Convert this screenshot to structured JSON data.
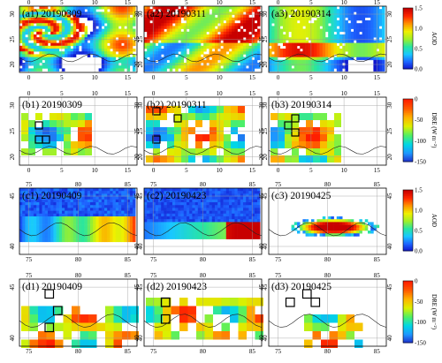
{
  "rows": [
    {
      "id": "a",
      "kind": "aod",
      "region": "sahara",
      "grid": "fine",
      "panels": [
        "(a1) 20190309",
        "(a2) 20190311",
        "(a3) 20190314"
      ],
      "xticks": [
        "0",
        "5",
        "10",
        "15"
      ],
      "yticks": [
        "30",
        "25",
        "20"
      ],
      "colorbar": {
        "title": "AOD",
        "ticks": [
          "1.5",
          "1.0",
          "0.5",
          "0.0"
        ]
      }
    },
    {
      "id": "b",
      "kind": "dre",
      "region": "sahara",
      "grid": "coarse",
      "panels": [
        "(b1) 20190309",
        "(b2) 20190311",
        "(b3) 20190314"
      ],
      "xticks": [
        "0",
        "5",
        "10",
        "15"
      ],
      "yticks": [
        "30",
        "25",
        "20"
      ],
      "colorbar": {
        "title": "DRE (W m⁻²)",
        "ticks": [
          "0",
          "-50",
          "-100",
          "-150"
        ]
      }
    },
    {
      "id": "c",
      "kind": "aod",
      "region": "taklimakan",
      "grid": "fine",
      "panels": [
        "(c1) 20190409",
        "(c2) 20190423",
        "(c3) 20190425"
      ],
      "xticks": [
        "75",
        "80",
        "85"
      ],
      "yticks": [
        "45",
        "40"
      ],
      "colorbar": {
        "title": "AOD",
        "ticks": [
          "1.5",
          "1.0",
          "0.5",
          "0.0"
        ]
      }
    },
    {
      "id": "d",
      "kind": "dre",
      "region": "taklimakan",
      "grid": "coarse",
      "panels": [
        "(d1) 20190409",
        "(d2) 20190423",
        "(d3) 20190425"
      ],
      "xticks": [
        "75",
        "80",
        "85"
      ],
      "yticks": [
        "45",
        "40"
      ],
      "colorbar": {
        "title": "DRE (W m⁻²)",
        "ticks": [
          "0",
          "-50",
          "-100",
          "-150"
        ]
      }
    }
  ],
  "colors": {
    "aod_scale": [
      "#1010c8",
      "#1e64ff",
      "#19c8ff",
      "#28e6a0",
      "#a0f028",
      "#f0f000",
      "#ff9600",
      "#ff2800",
      "#c80000"
    ],
    "dre_scale": [
      "#1e28c8",
      "#1e96ff",
      "#00d7e6",
      "#50f064",
      "#dcf000",
      "#ffb400",
      "#ff5a00",
      "#ff1e00"
    ],
    "border": "#000000",
    "grid": "#9a9a9a"
  }
}
